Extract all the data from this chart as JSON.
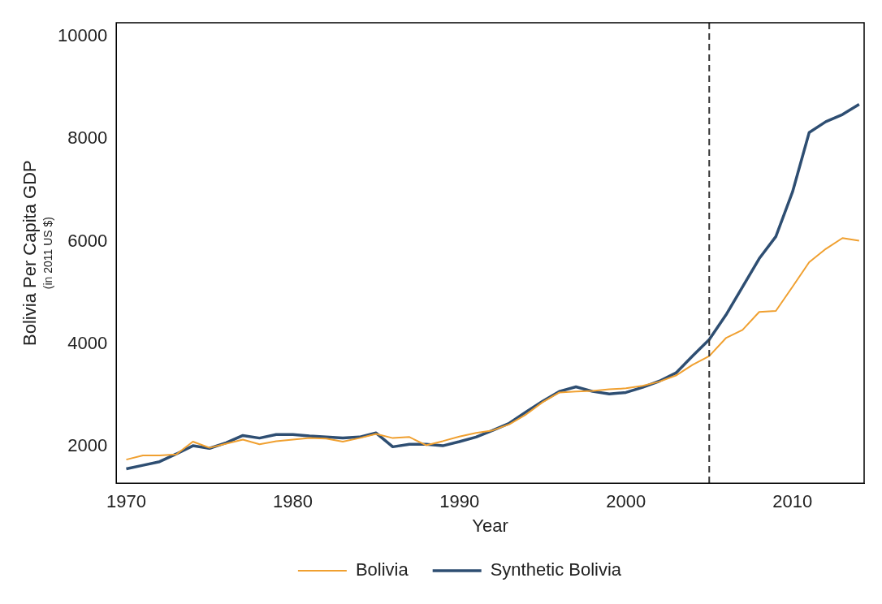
{
  "chart_data": {
    "type": "line",
    "xlabel": "Year",
    "ylabel": "Bolivia Per Capita GDP\n(in 2011 US $)",
    "x": [
      1970,
      1971,
      1972,
      1973,
      1974,
      1975,
      1976,
      1977,
      1978,
      1979,
      1980,
      1981,
      1982,
      1983,
      1984,
      1985,
      1986,
      1987,
      1988,
      1989,
      1990,
      1991,
      1992,
      1993,
      1994,
      1995,
      1996,
      1997,
      1998,
      1999,
      2000,
      2001,
      2002,
      2003,
      2004,
      2005,
      2006,
      2007,
      2008,
      2009,
      2010,
      2011,
      2012,
      2013,
      2014
    ],
    "series": [
      {
        "name": "Bolivia",
        "color": "#f0a030",
        "values": [
          1750,
          1830,
          1830,
          1850,
          2100,
          1980,
          2060,
          2140,
          2050,
          2110,
          2140,
          2170,
          2160,
          2100,
          2170,
          2250,
          2170,
          2190,
          2030,
          2110,
          2200,
          2270,
          2320,
          2440,
          2630,
          2870,
          3060,
          3080,
          3090,
          3120,
          3140,
          3190,
          3270,
          3390,
          3600,
          3770,
          4120,
          4280,
          4630,
          4650,
          5120,
          5600,
          5860,
          6070,
          6020
        ]
      },
      {
        "name": "Synthetic Bolivia",
        "color": "#2e4e72",
        "values": [
          1570,
          1640,
          1710,
          1860,
          2020,
          1970,
          2080,
          2220,
          2170,
          2240,
          2240,
          2210,
          2190,
          2170,
          2190,
          2270,
          2000,
          2050,
          2050,
          2020,
          2100,
          2190,
          2320,
          2460,
          2680,
          2890,
          3080,
          3170,
          3080,
          3030,
          3060,
          3160,
          3280,
          3440,
          3770,
          4090,
          4570,
          5120,
          5670,
          6100,
          6970,
          8130,
          8340,
          8480,
          8680
        ]
      }
    ],
    "xlim": [
      1969.4,
      2014.3
    ],
    "xticks": [
      1970,
      1980,
      1990,
      2000,
      2010
    ],
    "ylim": [
      1290,
      10270
    ],
    "yticks": [
      2000,
      4000,
      6000,
      8000,
      10000
    ],
    "ref_lines": [
      {
        "axis": "x",
        "value": 2005,
        "color": "#333333",
        "line_style": "dashed"
      }
    ],
    "grid": false,
    "legend": "bottom",
    "marker": "none",
    "line_style": "solid"
  }
}
